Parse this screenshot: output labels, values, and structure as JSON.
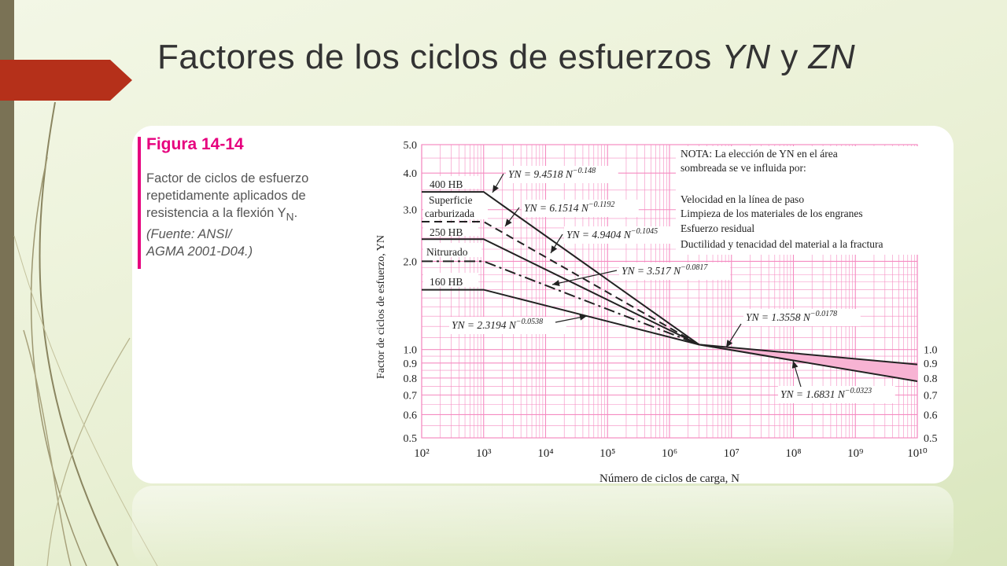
{
  "slide": {
    "title_prefix": "Factores de los ciclos de esfuerzos ",
    "title_y": "YN",
    "title_and": " y ",
    "title_z": "ZN"
  },
  "figure": {
    "heading": "Figura 14-14",
    "caption": "Factor de ciclos de esfuerzo repetidamente aplicados de resistencia a la flexión Y",
    "caption_sub": "N",
    "caption_end": ".",
    "source_line1": "(Fuente: ANSI/",
    "source_line2": "AGMA 2001-D04.)"
  },
  "colors": {
    "grid": "#f58bc1",
    "shade": "#f7b3d3",
    "curve": "#222222",
    "accent": "#e6007e",
    "arrow": "#b5301a"
  },
  "chart_data": {
    "type": "line",
    "xlabel": "Número de ciclos de carga, N",
    "ylabel": "Factor de ciclos de esfuerzo, YN",
    "xscale": "log",
    "yscale": "log",
    "xlim": [
      100,
      10000000000
    ],
    "ylim": [
      0.5,
      5.0
    ],
    "x_ticks": [
      "10²",
      "10³",
      "10⁴",
      "10⁵",
      "10⁶",
      "10⁷",
      "10⁸",
      "10⁹",
      "10¹⁰"
    ],
    "y_ticks_left": [
      "5.0",
      "4.0",
      "3.0",
      "2.0",
      "1.0",
      "0.9",
      "0.8",
      "0.7",
      "0.6",
      "0.5"
    ],
    "y_ticks_right": [
      "1.0",
      "0.9",
      "0.8",
      "0.7",
      "0.6",
      "0.5"
    ],
    "note_lines": [
      "NOTA: La elección de YN en el área",
      "sombreada se ve influida por:",
      "Velocidad en la línea de paso",
      "Limpieza de los materiales de los engranes",
      "Esfuerzo residual",
      "Ductilidad y tenacidad del material a la fractura"
    ],
    "series": [
      {
        "name": "400 HB",
        "x": [
          100,
          1000,
          3000000
        ],
        "y": [
          3.45,
          3.45,
          1.04
        ],
        "style": "solid",
        "equation": "YN = 9.4518 N−0.148"
      },
      {
        "name": "Superficie carburizada",
        "x": [
          100,
          1000,
          3000000
        ],
        "y": [
          2.73,
          2.73,
          1.04
        ],
        "style": "dashed",
        "equation": "YN = 6.1514 N−0.1192"
      },
      {
        "name": "250 HB",
        "x": [
          100,
          1000,
          3000000
        ],
        "y": [
          2.38,
          2.38,
          1.04
        ],
        "style": "solid",
        "equation": "YN = 4.9404 N−0.1045"
      },
      {
        "name": "Nitrurado",
        "x": [
          100,
          1000,
          3000000
        ],
        "y": [
          2.0,
          2.0,
          1.04
        ],
        "style": "dashdot",
        "equation": "YN = 3.517 N−0.0817"
      },
      {
        "name": "160 HB",
        "x": [
          100,
          1000,
          3000000
        ],
        "y": [
          1.6,
          1.6,
          1.04
        ],
        "style": "solid",
        "equation": "YN = 2.3194 N−0.0538"
      },
      {
        "name": "",
        "x": [
          3000000,
          10000000000
        ],
        "y": [
          1.04,
          0.89
        ],
        "style": "solid",
        "equation": "YN = 1.3558 N−0.0178"
      },
      {
        "name": "",
        "x": [
          3000000,
          10000000000
        ],
        "y": [
          1.04,
          0.78
        ],
        "style": "solid",
        "equation": "YN = 1.6831 N−0.0323"
      }
    ],
    "equations": [
      {
        "coef": "YN = 9.4518 N",
        "exp": "−0.148"
      },
      {
        "coef": "YN = 6.1514 N",
        "exp": "−0.1192"
      },
      {
        "coef": "YN = 4.9404 N",
        "exp": "−0.1045"
      },
      {
        "coef": "YN = 3.517 N",
        "exp": "−0.0817"
      },
      {
        "coef": "YN = 2.3194 N",
        "exp": "−0.0538"
      },
      {
        "coef": "YN = 1.3558 N",
        "exp": "−0.0178"
      },
      {
        "coef": "YN = 1.6831 N",
        "exp": "−0.0323"
      }
    ],
    "shaded_area": "between the 1.3558 and 1.6831 curves, 3×10⁶ to 10¹⁰ cycles",
    "grid": true
  }
}
